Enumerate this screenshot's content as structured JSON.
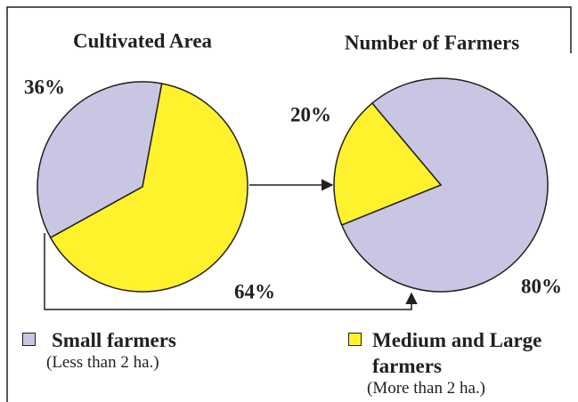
{
  "chart_data": [
    {
      "type": "pie",
      "title": "Cultivated Area",
      "categories": [
        "Small farmers",
        "Medium and Large farmers"
      ],
      "values": [
        36,
        64
      ],
      "value_labels": [
        "36%",
        "64%"
      ],
      "colors": [
        "#c9c6e4",
        "#fff22d"
      ]
    },
    {
      "type": "pie",
      "title": "Number of Farmers",
      "categories": [
        "Small farmers",
        "Medium and Large farmers"
      ],
      "values": [
        80,
        20
      ],
      "value_labels": [
        "80%",
        "20%"
      ],
      "colors": [
        "#c9c6e4",
        "#fff22d"
      ]
    }
  ],
  "legend_notes": [
    "(Less than 2 ha.)",
    "(More than 2 ha.)"
  ]
}
